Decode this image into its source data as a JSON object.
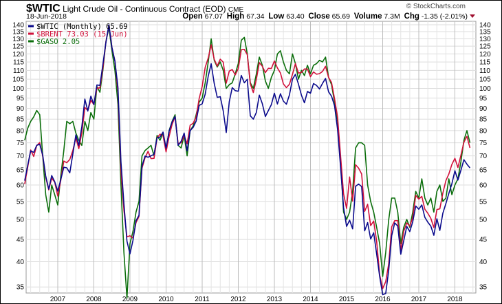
{
  "header": {
    "symbol": "$WTIC",
    "name": "Light Crude Oil - Continuous Contract (EOD)",
    "exchange": "CME",
    "date": "18-Jun-2018",
    "copyright": "© StockCharts.com",
    "open_label": "Open",
    "open": "67.07",
    "high_label": "High",
    "high": "67.34",
    "low_label": "Low",
    "low": "63.40",
    "close_label": "Close",
    "close": "65.69",
    "volume_label": "Volume",
    "volume": "7.3M",
    "chg_label": "Chg",
    "chg": "-1.35 (-2.01%)"
  },
  "chart_data": {
    "type": "line",
    "title": "$WTIC Light Crude Oil - Continuous Contract (EOD) CME",
    "xlabel": "",
    "ylabel": "",
    "y_scale": "log",
    "ylim": [
      33,
      142
    ],
    "yticks": [
      35,
      40,
      45,
      50,
      55,
      60,
      65,
      70,
      75,
      80,
      85,
      90,
      95,
      100,
      105,
      110,
      115,
      120,
      125,
      130,
      135,
      140
    ],
    "xticks": [
      "2007",
      "2008",
      "2009",
      "2010",
      "2011",
      "2012",
      "2013",
      "2014",
      "2015",
      "2016",
      "2017",
      "2018"
    ],
    "start": "2006-02",
    "frequency": "monthly",
    "grid": true,
    "legend_position": "top-left",
    "legend": [
      "$WTIC (Monthly) 65.69",
      "$BRENT 73.03 (15 Jun)",
      "$GASO 2.05"
    ],
    "series": [
      {
        "name": "$WTIC",
        "color": "#0a0a8c",
        "values": [
          61.4,
          66.6,
          71.9,
          71.3,
          74.0,
          74.4,
          70.3,
          62.9,
          58.7,
          63.1,
          61.05,
          58.1,
          61.8,
          65.9,
          65.7,
          64.0,
          70.7,
          78.2,
          74.0,
          81.7,
          94.5,
          88.7,
          96.0,
          91.8,
          101.8,
          101.6,
          113.5,
          127.4,
          140.0,
          124.1,
          115.5,
          100.6,
          67.8,
          54.4,
          44.6,
          41.7,
          44.8,
          49.7,
          51.1,
          66.3,
          69.9,
          69.5,
          70.0,
          70.6,
          77.0,
          77.3,
          79.4,
          72.9,
          79.7,
          83.8,
          86.2,
          74.0,
          75.6,
          79.0,
          71.9,
          80.0,
          81.4,
          84.1,
          91.4,
          92.2,
          97.0,
          106.7,
          113.9,
          102.7,
          95.4,
          95.7,
          88.8,
          79.2,
          93.2,
          100.4,
          98.8,
          98.5,
          107.1,
          103.0,
          104.9,
          86.5,
          85.0,
          88.1,
          96.5,
          92.2,
          86.2,
          88.9,
          91.8,
          97.5,
          92.1,
          97.2,
          93.5,
          92.0,
          96.6,
          105.0,
          107.7,
          102.3,
          96.4,
          92.7,
          98.4,
          97.5,
          102.6,
          101.6,
          99.7,
          102.7,
          105.4,
          98.2,
          96.0,
          91.2,
          80.5,
          66.2,
          53.3,
          48.2,
          49.8,
          47.6,
          59.6,
          60.3,
          59.5,
          47.1,
          49.2,
          45.1,
          46.6,
          41.7,
          37.0,
          33.6,
          33.8,
          38.3,
          45.9,
          49.1,
          48.3,
          41.6,
          44.7,
          48.2,
          46.9,
          49.4,
          53.7,
          52.8,
          54.0,
          50.6,
          49.3,
          48.3,
          46.0,
          50.2,
          47.2,
          51.7,
          54.4,
          57.4,
          60.4,
          64.7,
          61.6,
          64.9,
          68.6,
          67.0,
          65.69
        ]
      },
      {
        "name": "$BRENT",
        "color": "#d0103a",
        "values": [
          60.3,
          65.9,
          72.2,
          69.8,
          73.9,
          75.1,
          69.9,
          62.5,
          58.5,
          62.2,
          60.9,
          56.6,
          61.5,
          68.1,
          67.5,
          68.7,
          72.0,
          77.0,
          72.7,
          79.2,
          90.4,
          89.0,
          93.9,
          91.8,
          100.1,
          100.3,
          111.4,
          127.8,
          139.8,
          124.1,
          115.6,
          98.2,
          64.7,
          52.5,
          45.6,
          45.9,
          45.3,
          49.2,
          50.8,
          65.6,
          69.3,
          71.7,
          69.0,
          69.1,
          77.0,
          78.5,
          77.9,
          71.5,
          77.6,
          82.7,
          86.2,
          74.7,
          75.0,
          77.9,
          74.6,
          82.3,
          83.2,
          85.9,
          94.75,
          101.0,
          111.8,
          117.4,
          125.9,
          116.7,
          112.5,
          116.7,
          114.9,
          102.8,
          109.6,
          110.5,
          107.4,
          111.0,
          122.7,
          122.9,
          119.5,
          102.4,
          97.8,
          104.9,
          114.6,
          112.4,
          108.7,
          111.2,
          111.1,
          115.6,
          111.4,
          108.5,
          102.4,
          100.4,
          102.2,
          107.7,
          114.0,
          108.4,
          108.8,
          110.8,
          110.8,
          106.4,
          109.1,
          107.8,
          108.1,
          109.4,
          112.4,
          106.0,
          103.2,
          94.7,
          85.9,
          70.2,
          57.3,
          53.0,
          62.6,
          55.1,
          66.8,
          65.6,
          63.6,
          52.2,
          54.2,
          48.4,
          49.6,
          44.6,
          37.3,
          34.7,
          36.0,
          39.6,
          48.1,
          49.7,
          49.7,
          42.5,
          47.0,
          49.1,
          48.3,
          50.5,
          56.8,
          55.7,
          56.5,
          52.8,
          51.7,
          50.3,
          47.9,
          52.7,
          52.9,
          57.5,
          61.4,
          63.6,
          66.9,
          69.1,
          65.8,
          70.3,
          75.2,
          77.6,
          73.03
        ]
      },
      {
        "name": "$GASO",
        "color": "#0b6e0b",
        "values": [
          76,
          81,
          84,
          86,
          89,
          87,
          70,
          57,
          52,
          60,
          57,
          54,
          63,
          72,
          84,
          83,
          84,
          79,
          76,
          74,
          84,
          80,
          88,
          85,
          101,
          98,
          110,
          128,
          138,
          122,
          110,
          92,
          60,
          42,
          33,
          44,
          47,
          52,
          55,
          70,
          72,
          73,
          74,
          70,
          78,
          76,
          79,
          72,
          80,
          84,
          87,
          74,
          73,
          78,
          70,
          80,
          82,
          87,
          93,
          95,
          103,
          115,
          130,
          116,
          112,
          115,
          110,
          100,
          102,
          103,
          108,
          114,
          129,
          131,
          120,
          103,
          100,
          108,
          118,
          113,
          104,
          100,
          106,
          110,
          120,
          122,
          115,
          110,
          108,
          120,
          114,
          105,
          110,
          107,
          113,
          108,
          113,
          114,
          116,
          115,
          118,
          106,
          102,
          93,
          84,
          68,
          52,
          50,
          52,
          58,
          73,
          75,
          75,
          74,
          60,
          55,
          52,
          48,
          44,
          37,
          42,
          50,
          56,
          56,
          52,
          44,
          48,
          50,
          48,
          52,
          58,
          56,
          62,
          56,
          54,
          56,
          52,
          58,
          60,
          55,
          56,
          62,
          57,
          60,
          62,
          68,
          76,
          80,
          75
        ]
      }
    ]
  }
}
